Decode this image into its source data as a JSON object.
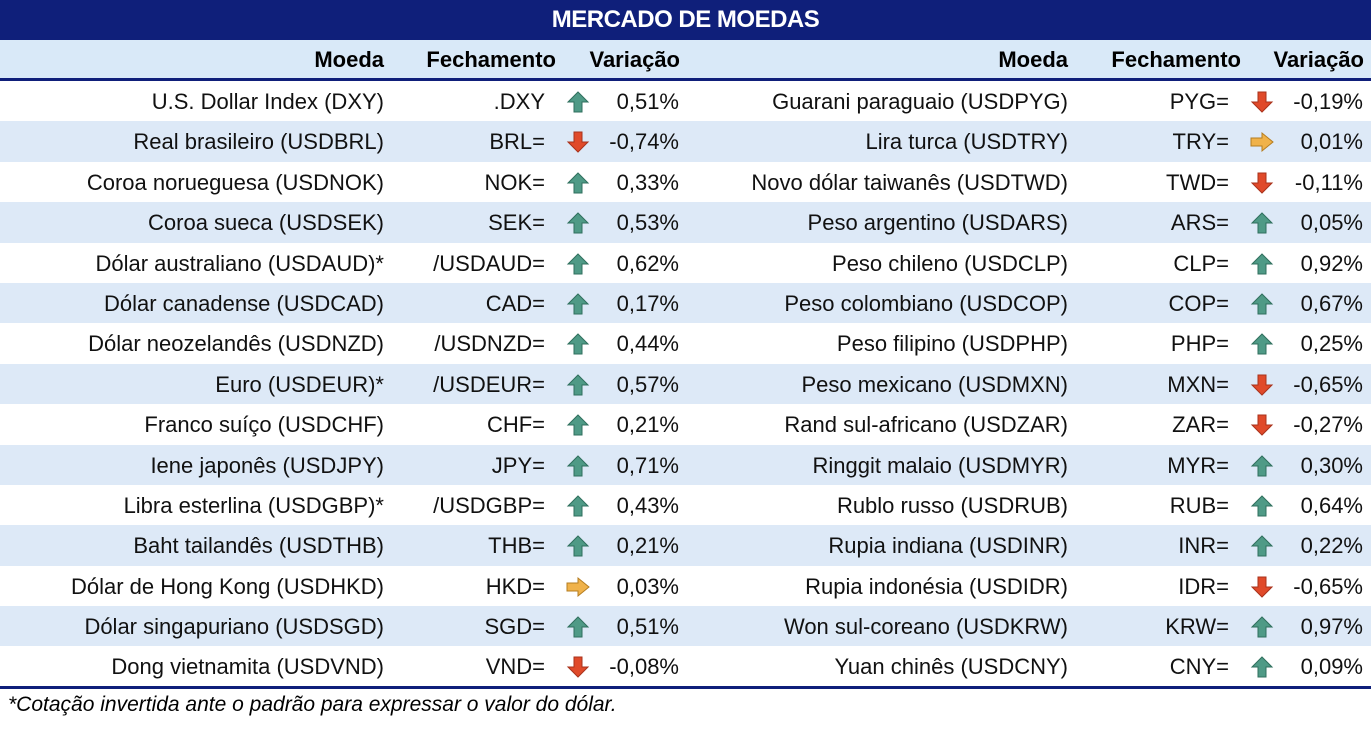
{
  "title": "MERCADO DE MOEDAS",
  "headers": {
    "currency": "Moeda",
    "close": "Fechamento",
    "change": "Variação"
  },
  "colors": {
    "header_band": "#0f1f7a",
    "stripe": "#dde9f7",
    "up": "#4f9a86",
    "down": "#e04a2a",
    "flat": "#f0b24a"
  },
  "left_rows": [
    {
      "name": "U.S. Dollar Index (DXY)",
      "ric": ".DXY",
      "trend": "up-arrow-icon",
      "change": "0,51%"
    },
    {
      "name": "Real brasileiro (USDBRL)",
      "ric": "BRL=",
      "trend": "down-arrow-icon",
      "change": "-0,74%"
    },
    {
      "name": "Coroa norueguesa (USDNOK)",
      "ric": "NOK=",
      "trend": "up-arrow-icon",
      "change": "0,33%"
    },
    {
      "name": "Coroa sueca (USDSEK)",
      "ric": "SEK=",
      "trend": "up-arrow-icon",
      "change": "0,53%"
    },
    {
      "name": "Dólar australiano (USDAUD)*",
      "ric": "/USDAUD=",
      "trend": "up-arrow-icon",
      "change": "0,62%"
    },
    {
      "name": "Dólar canadense (USDCAD)",
      "ric": "CAD=",
      "trend": "up-arrow-icon",
      "change": "0,17%"
    },
    {
      "name": "Dólar neozelandês (USDNZD)",
      "ric": "/USDNZD=",
      "trend": "up-arrow-icon",
      "change": "0,44%"
    },
    {
      "name": "Euro (USDEUR)*",
      "ric": "/USDEUR=",
      "trend": "up-arrow-icon",
      "change": "0,57%"
    },
    {
      "name": "Franco suíço (USDCHF)",
      "ric": "CHF=",
      "trend": "up-arrow-icon",
      "change": "0,21%"
    },
    {
      "name": "Iene japonês (USDJPY)",
      "ric": "JPY=",
      "trend": "up-arrow-icon",
      "change": "0,71%"
    },
    {
      "name": "Libra esterlina (USDGBP)*",
      "ric": "/USDGBP=",
      "trend": "up-arrow-icon",
      "change": "0,43%"
    },
    {
      "name": "Baht tailandês (USDTHB)",
      "ric": "THB=",
      "trend": "up-arrow-icon",
      "change": "0,21%"
    },
    {
      "name": "Dólar de Hong Kong (USDHKD)",
      "ric": "HKD=",
      "trend": "right-arrow-icon",
      "change": "0,03%"
    },
    {
      "name": "Dólar singapuriano (USDSGD)",
      "ric": "SGD=",
      "trend": "up-arrow-icon",
      "change": "0,51%"
    },
    {
      "name": "Dong vietnamita (USDVND)",
      "ric": "VND=",
      "trend": "down-arrow-icon",
      "change": "-0,08%"
    }
  ],
  "right_rows": [
    {
      "name": "Guarani paraguaio (USDPYG)",
      "ric": "PYG=",
      "trend": "down-arrow-icon",
      "change": "-0,19%"
    },
    {
      "name": "Lira turca (USDTRY)",
      "ric": "TRY=",
      "trend": "right-arrow-icon",
      "change": "0,01%"
    },
    {
      "name": "Novo dólar taiwanês (USDTWD)",
      "ric": "TWD=",
      "trend": "down-arrow-icon",
      "change": "-0,11%"
    },
    {
      "name": "Peso argentino (USDARS)",
      "ric": "ARS=",
      "trend": "up-arrow-icon",
      "change": "0,05%"
    },
    {
      "name": "Peso chileno (USDCLP)",
      "ric": "CLP=",
      "trend": "up-arrow-icon",
      "change": "0,92%"
    },
    {
      "name": "Peso colombiano (USDCOP)",
      "ric": "COP=",
      "trend": "up-arrow-icon",
      "change": "0,67%"
    },
    {
      "name": "Peso filipino (USDPHP)",
      "ric": "PHP=",
      "trend": "up-arrow-icon",
      "change": "0,25%"
    },
    {
      "name": "Peso mexicano (USDMXN)",
      "ric": "MXN=",
      "trend": "down-arrow-icon",
      "change": "-0,65%"
    },
    {
      "name": "Rand sul-africano (USDZAR)",
      "ric": "ZAR=",
      "trend": "down-arrow-icon",
      "change": "-0,27%"
    },
    {
      "name": "Ringgit malaio (USDMYR)",
      "ric": "MYR=",
      "trend": "up-arrow-icon",
      "change": "0,30%"
    },
    {
      "name": "Rublo russo (USDRUB)",
      "ric": "RUB=",
      "trend": "up-arrow-icon",
      "change": "0,64%"
    },
    {
      "name": "Rupia indiana (USDINR)",
      "ric": "INR=",
      "trend": "up-arrow-icon",
      "change": "0,22%"
    },
    {
      "name": "Rupia indonésia (USDIDR)",
      "ric": "IDR=",
      "trend": "down-arrow-icon",
      "change": "-0,65%"
    },
    {
      "name": "Won sul-coreano (USDKRW)",
      "ric": "KRW=",
      "trend": "up-arrow-icon",
      "change": "0,97%"
    },
    {
      "name": "Yuan chinês (USDCNY)",
      "ric": "CNY=",
      "trend": "up-arrow-icon",
      "change": "0,09%"
    }
  ],
  "footnote": "*Cotação invertida ante o padrão para expressar o valor do dólar."
}
